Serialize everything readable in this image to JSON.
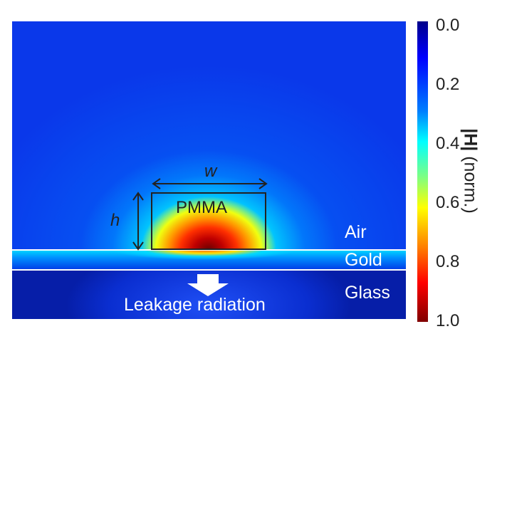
{
  "figure": {
    "labels": {
      "air": "Air",
      "gold": "Gold",
      "glass": "Glass",
      "pmma": "PMMA",
      "width": "w",
      "height": "h",
      "leakage": "Leakage radiation"
    },
    "colorbar": {
      "label_bold": "|H|",
      "label_rest": " (norm.)",
      "ticks": [
        "0.0",
        "0.2",
        "0.4",
        "0.6",
        "0.8",
        "1.0"
      ],
      "colormap": "jet (reversed)"
    }
  }
}
